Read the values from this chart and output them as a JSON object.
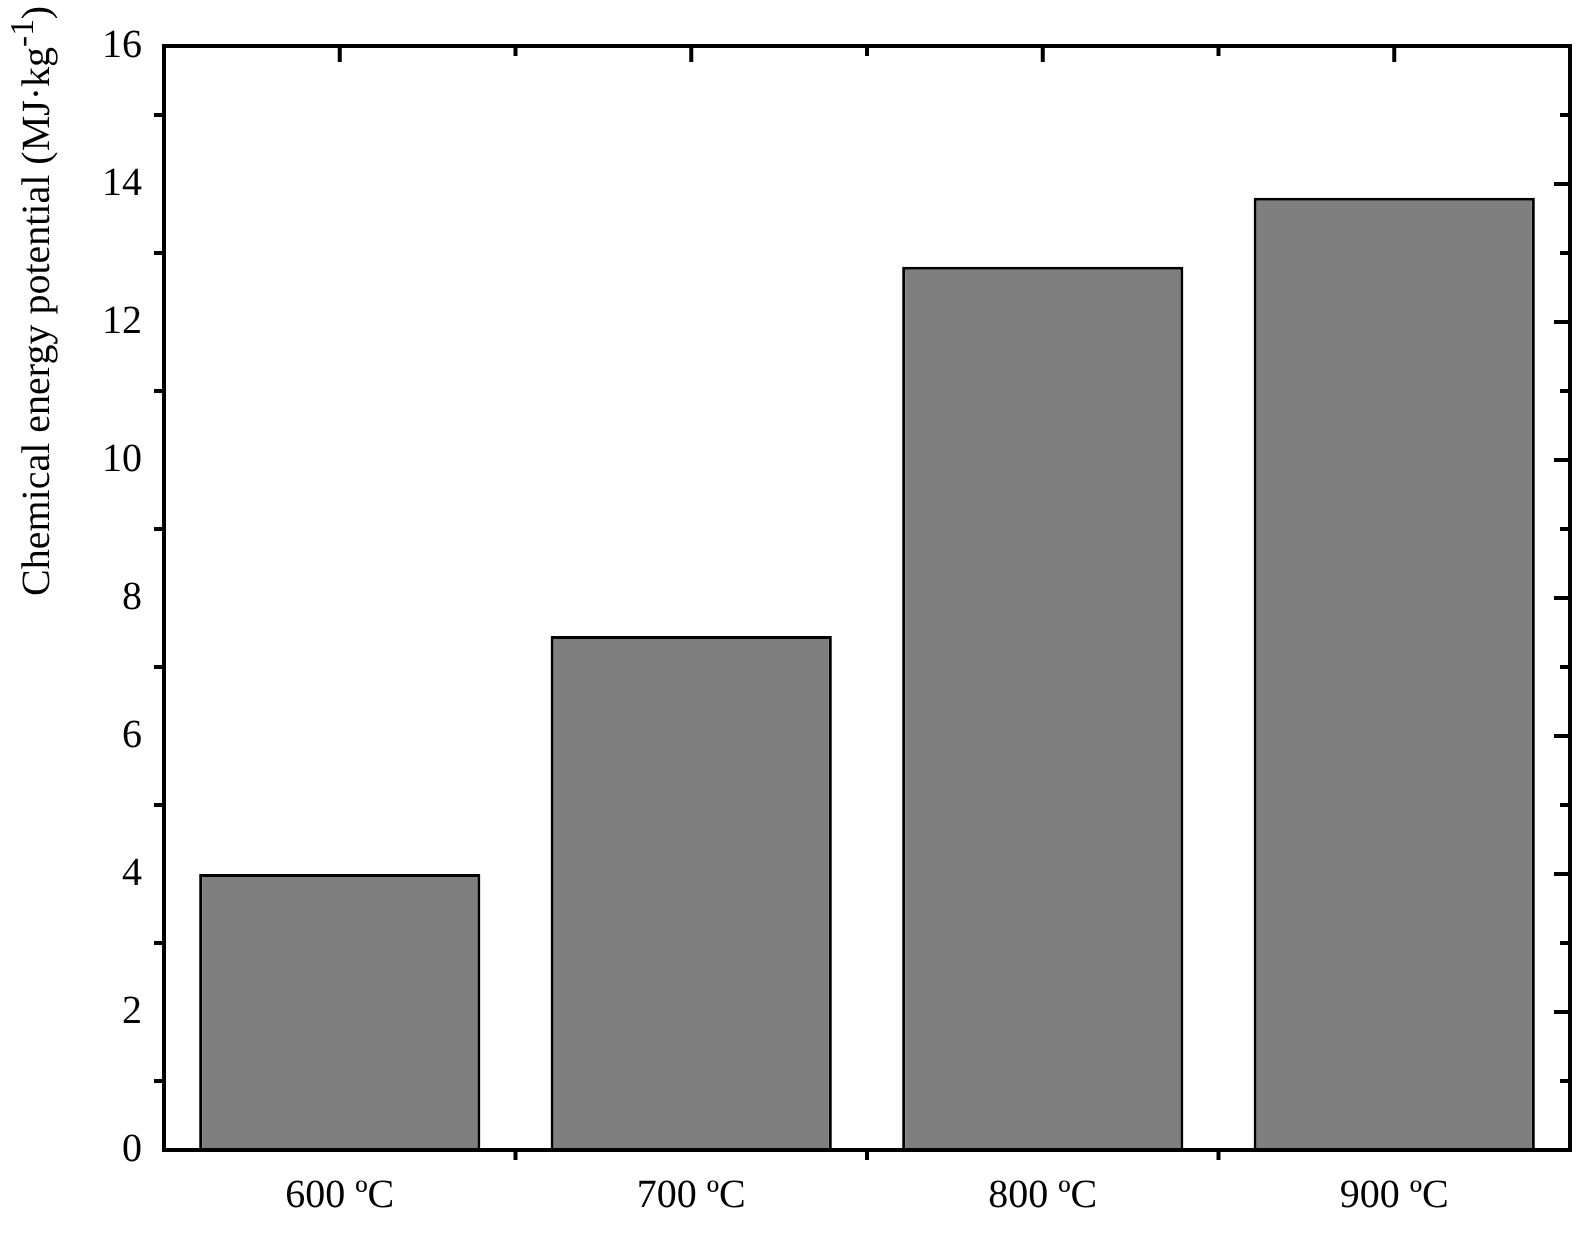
{
  "chart_data": {
    "type": "bar",
    "ylabel": "Chemical energy potential (MJ·kg$^{-1}$)",
    "categories": [
      "600 ºC",
      "700 ºC",
      "800 ºC",
      "900 ºC"
    ],
    "values": [
      4.0,
      7.45,
      12.8,
      13.8
    ],
    "color": "#7f7f7f",
    "ylim": [
      0,
      16
    ],
    "yticks": [
      0,
      2,
      4,
      6,
      8,
      10,
      12,
      14,
      16
    ]
  }
}
